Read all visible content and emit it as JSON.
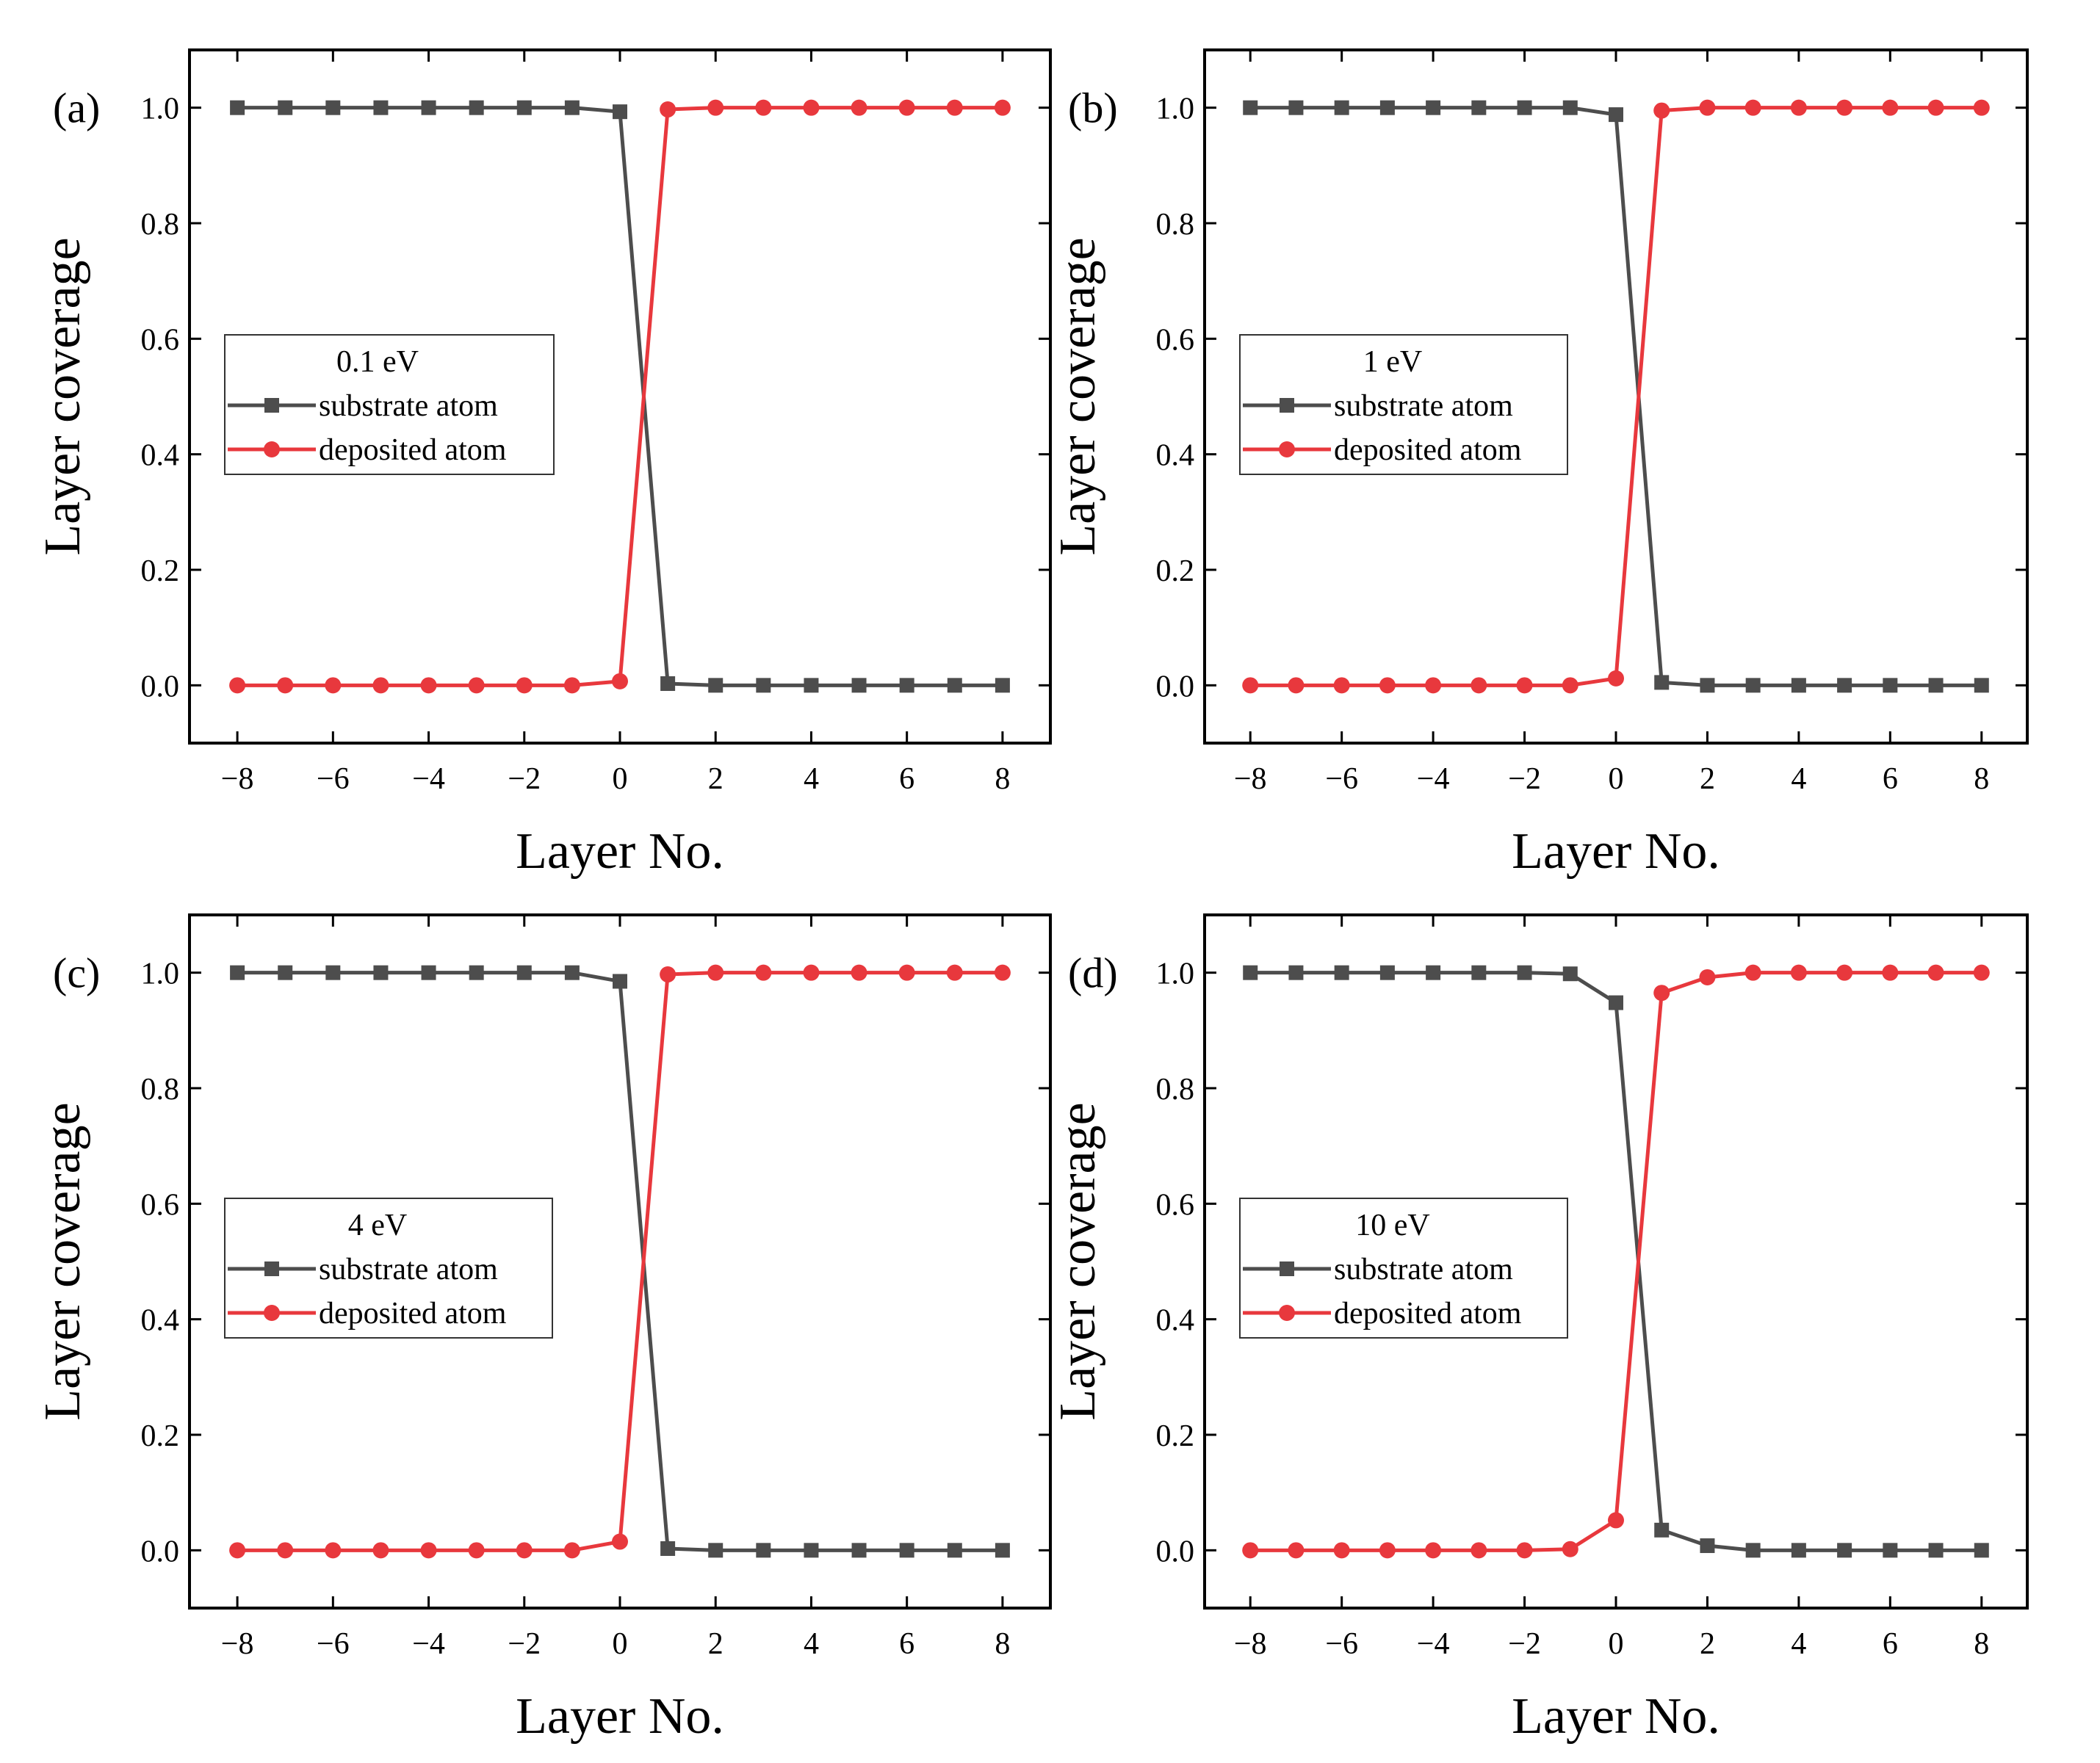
{
  "colors": {
    "substrate": "#4d4d4d",
    "deposited": "#e8383d",
    "axis": "#000000",
    "background": "#ffffff"
  },
  "chart_data": [
    {
      "type": "line",
      "panel": "(a)",
      "legend_title": "0.1 eV",
      "xlabel": "Layer No.",
      "ylabel": "Layer coverage",
      "xlim": [
        -9,
        9
      ],
      "ylim": [
        -0.1,
        1.1
      ],
      "xticks": [
        -8,
        -6,
        -4,
        -2,
        0,
        2,
        4,
        6,
        8
      ],
      "xtick_labels": [
        "−8",
        "−6",
        "−4",
        "−2",
        "0",
        "2",
        "4",
        "6",
        "8"
      ],
      "yticks": [
        0.0,
        0.2,
        0.4,
        0.6,
        0.8,
        1.0
      ],
      "ytick_labels": [
        "0.0",
        "0.2",
        "0.4",
        "0.6",
        "0.8",
        "1.0"
      ],
      "x": [
        -8,
        -7,
        -6,
        -5,
        -4,
        -3,
        -2,
        -1,
        0,
        1,
        2,
        3,
        4,
        5,
        6,
        7,
        8
      ],
      "series": [
        {
          "name": "substrate atom",
          "marker": "square",
          "color": "#4d4d4d",
          "values": [
            1,
            1,
            1,
            1,
            1,
            1,
            1,
            1,
            0.993,
            0.003,
            0,
            0,
            0,
            0,
            0,
            0,
            0
          ]
        },
        {
          "name": "deposited atom",
          "marker": "circle",
          "color": "#e8383d",
          "values": [
            0,
            0,
            0,
            0,
            0,
            0,
            0,
            0,
            0.007,
            0.997,
            1,
            1,
            1,
            1,
            1,
            1,
            1
          ]
        }
      ]
    },
    {
      "type": "line",
      "panel": "(b)",
      "legend_title": "1 eV",
      "xlabel": "Layer No.",
      "ylabel": "Layer coverage",
      "xlim": [
        -9,
        9
      ],
      "ylim": [
        -0.1,
        1.1
      ],
      "xticks": [
        -8,
        -6,
        -4,
        -2,
        0,
        2,
        4,
        6,
        8
      ],
      "xtick_labels": [
        "−8",
        "−6",
        "−4",
        "−2",
        "0",
        "2",
        "4",
        "6",
        "8"
      ],
      "yticks": [
        0.0,
        0.2,
        0.4,
        0.6,
        0.8,
        1.0
      ],
      "ytick_labels": [
        "0.0",
        "0.2",
        "0.4",
        "0.6",
        "0.8",
        "1.0"
      ],
      "x": [
        -8,
        -7,
        -6,
        -5,
        -4,
        -3,
        -2,
        -1,
        0,
        1,
        2,
        3,
        4,
        5,
        6,
        7,
        8
      ],
      "series": [
        {
          "name": "substrate atom",
          "marker": "square",
          "color": "#4d4d4d",
          "values": [
            1,
            1,
            1,
            1,
            1,
            1,
            1,
            1,
            0.988,
            0.005,
            0,
            0,
            0,
            0,
            0,
            0,
            0
          ]
        },
        {
          "name": "deposited atom",
          "marker": "circle",
          "color": "#e8383d",
          "values": [
            0,
            0,
            0,
            0,
            0,
            0,
            0,
            0,
            0.012,
            0.995,
            1,
            1,
            1,
            1,
            1,
            1,
            1
          ]
        }
      ]
    },
    {
      "type": "line",
      "panel": "(c)",
      "legend_title": "4 eV",
      "xlabel": "Layer No.",
      "ylabel": "Layer coverage",
      "xlim": [
        -9,
        9
      ],
      "ylim": [
        -0.1,
        1.1
      ],
      "xticks": [
        -8,
        -6,
        -4,
        -2,
        0,
        2,
        4,
        6,
        8
      ],
      "xtick_labels": [
        "−8",
        "−6",
        "−4",
        "−2",
        "0",
        "2",
        "4",
        "6",
        "8"
      ],
      "yticks": [
        0.0,
        0.2,
        0.4,
        0.6,
        0.8,
        1.0
      ],
      "ytick_labels": [
        "0.0",
        "0.2",
        "0.4",
        "0.6",
        "0.8",
        "1.0"
      ],
      "x": [
        -8,
        -7,
        -6,
        -5,
        -4,
        -3,
        -2,
        -1,
        0,
        1,
        2,
        3,
        4,
        5,
        6,
        7,
        8
      ],
      "series": [
        {
          "name": "substrate atom",
          "marker": "square",
          "color": "#4d4d4d",
          "values": [
            1,
            1,
            1,
            1,
            1,
            1,
            1,
            1,
            0.985,
            0.003,
            0,
            0,
            0,
            0,
            0,
            0,
            0
          ]
        },
        {
          "name": "deposited atom",
          "marker": "circle",
          "color": "#e8383d",
          "values": [
            0,
            0,
            0,
            0,
            0,
            0,
            0,
            0,
            0.015,
            0.997,
            1,
            1,
            1,
            1,
            1,
            1,
            1
          ]
        }
      ]
    },
    {
      "type": "line",
      "panel": "(d)",
      "legend_title": "10 eV",
      "xlabel": "Layer No.",
      "ylabel": "Layer coverage",
      "xlim": [
        -9,
        9
      ],
      "ylim": [
        -0.1,
        1.1
      ],
      "xticks": [
        -8,
        -6,
        -4,
        -2,
        0,
        2,
        4,
        6,
        8
      ],
      "xtick_labels": [
        "−8",
        "−6",
        "−4",
        "−2",
        "0",
        "2",
        "4",
        "6",
        "8"
      ],
      "yticks": [
        0.0,
        0.2,
        0.4,
        0.6,
        0.8,
        1.0
      ],
      "ytick_labels": [
        "0.0",
        "0.2",
        "0.4",
        "0.6",
        "0.8",
        "1.0"
      ],
      "x": [
        -8,
        -7,
        -6,
        -5,
        -4,
        -3,
        -2,
        -1,
        0,
        1,
        2,
        3,
        4,
        5,
        6,
        7,
        8
      ],
      "series": [
        {
          "name": "substrate atom",
          "marker": "square",
          "color": "#4d4d4d",
          "values": [
            1,
            1,
            1,
            1,
            1,
            1,
            1,
            0.998,
            0.948,
            0.035,
            0.008,
            0,
            0,
            0,
            0,
            0,
            0
          ]
        },
        {
          "name": "deposited atom",
          "marker": "circle",
          "color": "#e8383d",
          "values": [
            0,
            0,
            0,
            0,
            0,
            0,
            0,
            0.002,
            0.052,
            0.965,
            0.992,
            1,
            1,
            1,
            1,
            1,
            1
          ]
        }
      ]
    }
  ]
}
